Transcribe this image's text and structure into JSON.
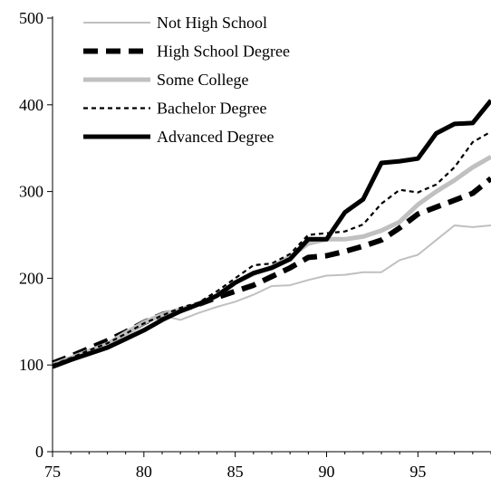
{
  "chart_data": {
    "type": "line",
    "title": "",
    "xlabel": "",
    "ylabel": "",
    "xlim": [
      75,
      99
    ],
    "ylim": [
      0,
      500
    ],
    "x_ticks": [
      75,
      80,
      85,
      90,
      95
    ],
    "y_ticks": [
      0,
      100,
      200,
      300,
      400,
      500
    ],
    "grid": false,
    "legend_position": "top-left",
    "x": [
      75,
      76,
      77,
      78,
      79,
      80,
      81,
      82,
      83,
      84,
      85,
      86,
      87,
      88,
      89,
      90,
      91,
      92,
      93,
      94,
      95,
      96,
      97,
      98,
      99
    ],
    "series": [
      {
        "name": "Not High School",
        "color": "#c0c0c0",
        "style": "solid-thin",
        "values": [
          98,
          106,
          114,
          124,
          133,
          146,
          157,
          152,
          160,
          167,
          173,
          181,
          191,
          192,
          198,
          203,
          204,
          207,
          207,
          221,
          227,
          244,
          261,
          259,
          261
        ]
      },
      {
        "name": "High School Degree",
        "color": "#000000",
        "style": "dashed-thick",
        "values": [
          102,
          110,
          119,
          128,
          138,
          149,
          158,
          163,
          170,
          178,
          185,
          192,
          202,
          212,
          224,
          226,
          231,
          237,
          244,
          258,
          274,
          282,
          290,
          298,
          315
        ]
      },
      {
        "name": "Some College",
        "color": "#c0c0c0",
        "style": "solid-thick",
        "values": [
          100,
          108,
          116,
          124,
          137,
          149,
          158,
          164,
          170,
          180,
          195,
          205,
          213,
          225,
          240,
          245,
          245,
          248,
          255,
          265,
          285,
          300,
          313,
          328,
          340
        ]
      },
      {
        "name": "Bachelor Degree",
        "color": "#000000",
        "style": "dotted-thin",
        "values": [
          100,
          108,
          117,
          125,
          136,
          148,
          157,
          166,
          172,
          185,
          200,
          215,
          217,
          228,
          250,
          252,
          254,
          262,
          286,
          302,
          299,
          308,
          328,
          357,
          369
        ]
      },
      {
        "name": "Advanced Degree",
        "color": "#000000",
        "style": "solid-thick",
        "values": [
          98,
          106,
          113,
          120,
          130,
          140,
          152,
          162,
          170,
          180,
          195,
          206,
          212,
          222,
          245,
          245,
          276,
          291,
          333,
          335,
          338,
          367,
          378,
          379,
          405
        ]
      }
    ]
  }
}
